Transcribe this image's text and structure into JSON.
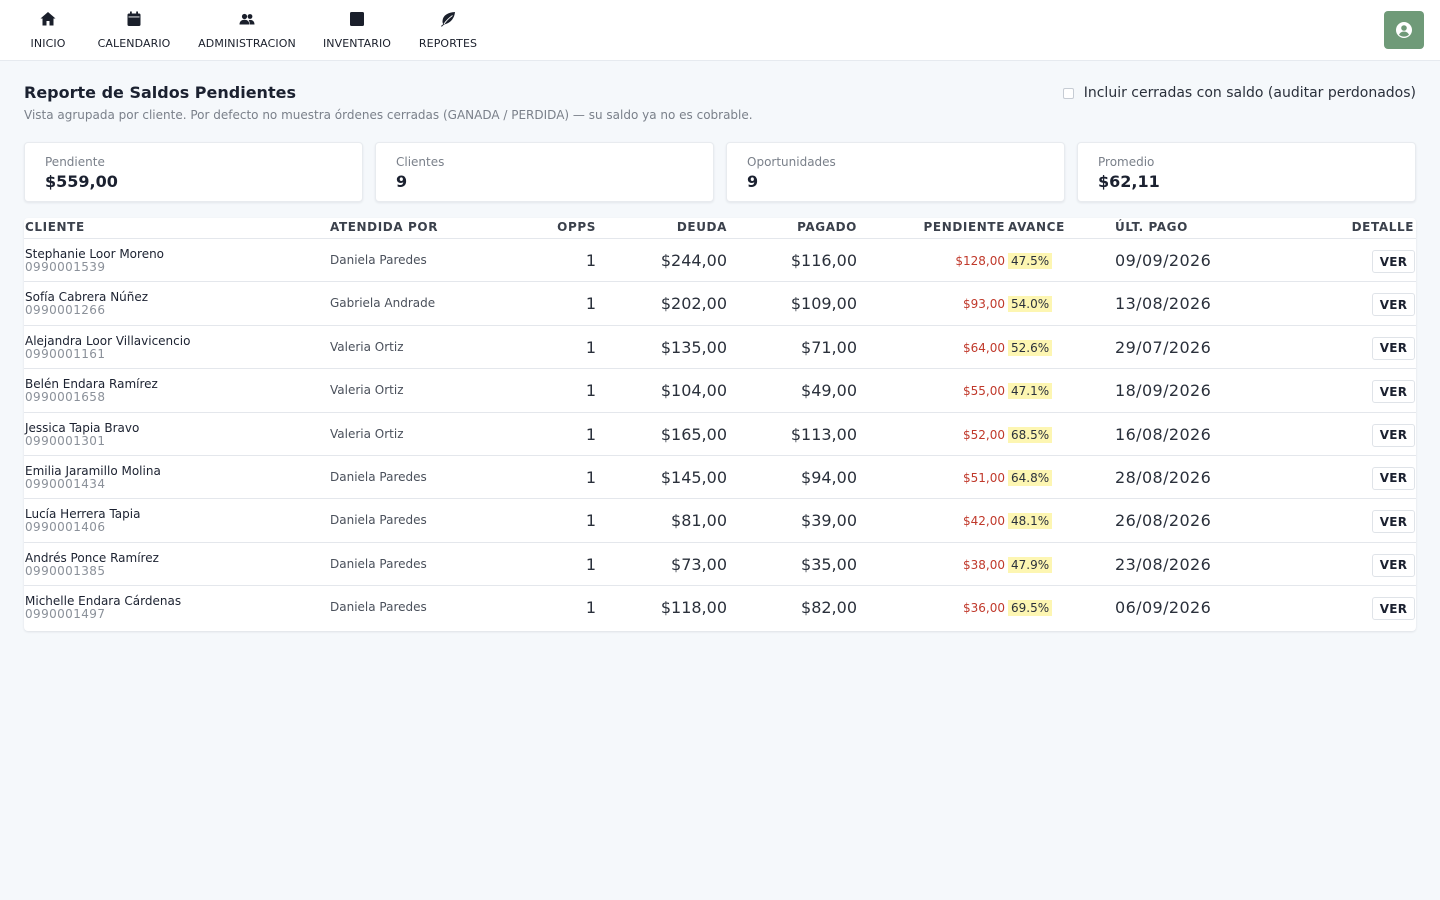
{
  "nav": {
    "items": [
      {
        "label": "INICIO",
        "icon": "home-icon"
      },
      {
        "label": "CALENDARIO",
        "icon": "calendar-icon"
      },
      {
        "label": "ADMINISTRACION",
        "icon": "users-icon"
      },
      {
        "label": "INVENTARIO",
        "icon": "box-icon"
      },
      {
        "label": "REPORTES",
        "icon": "leaf-icon"
      }
    ],
    "user_icon": "user-circle-icon",
    "user_button_color": "#6f9a78"
  },
  "header": {
    "title": "Reporte de Saldos Pendientes",
    "subtitle": "Vista agrupada por cliente. Por defecto no muestra órdenes cerradas (GANADA / PERDIDA) — su saldo ya no es cobrable.",
    "include_closed_label": "Incluir cerradas con saldo (auditar perdonados)",
    "include_closed_checked": false
  },
  "stats": [
    {
      "label": "Pendiente",
      "value": "$559,00"
    },
    {
      "label": "Clientes",
      "value": "9"
    },
    {
      "label": "Oportunidades",
      "value": "9"
    },
    {
      "label": "Promedio",
      "value": "$62,11"
    }
  ],
  "table": {
    "columns": [
      "CLIENTE",
      "ATENDIDA POR",
      "OPPS",
      "DEUDA",
      "PAGADO",
      "PENDIENTE",
      "AVANCE",
      "ÚLT. PAGO",
      "DETALLE"
    ],
    "action_label": "VER",
    "pending_color": "#c0392b",
    "progress_highlight": "#fdf6b2",
    "rows": [
      {
        "client": "Stephanie Loor Moreno",
        "id": "0990001539",
        "agent": "Daniela Paredes",
        "opps": "1",
        "debt": "$244,00",
        "paid": "$116,00",
        "pending": "$128,00",
        "progress": "47.5%",
        "last_payment": "09/09/2026"
      },
      {
        "client": "Sofía Cabrera Núñez",
        "id": "0990001266",
        "agent": "Gabriela Andrade",
        "opps": "1",
        "debt": "$202,00",
        "paid": "$109,00",
        "pending": "$93,00",
        "progress": "54.0%",
        "last_payment": "13/08/2026"
      },
      {
        "client": "Alejandra Loor Villavicencio",
        "id": "0990001161",
        "agent": "Valeria Ortiz",
        "opps": "1",
        "debt": "$135,00",
        "paid": "$71,00",
        "pending": "$64,00",
        "progress": "52.6%",
        "last_payment": "29/07/2026"
      },
      {
        "client": "Belén Endara Ramírez",
        "id": "0990001658",
        "agent": "Valeria Ortiz",
        "opps": "1",
        "debt": "$104,00",
        "paid": "$49,00",
        "pending": "$55,00",
        "progress": "47.1%",
        "last_payment": "18/09/2026"
      },
      {
        "client": "Jessica Tapia Bravo",
        "id": "0990001301",
        "agent": "Valeria Ortiz",
        "opps": "1",
        "debt": "$165,00",
        "paid": "$113,00",
        "pending": "$52,00",
        "progress": "68.5%",
        "last_payment": "16/08/2026"
      },
      {
        "client": "Emilia Jaramillo Molina",
        "id": "0990001434",
        "agent": "Daniela Paredes",
        "opps": "1",
        "debt": "$145,00",
        "paid": "$94,00",
        "pending": "$51,00",
        "progress": "64.8%",
        "last_payment": "28/08/2026"
      },
      {
        "client": "Lucía Herrera Tapia",
        "id": "0990001406",
        "agent": "Daniela Paredes",
        "opps": "1",
        "debt": "$81,00",
        "paid": "$39,00",
        "pending": "$42,00",
        "progress": "48.1%",
        "last_payment": "26/08/2026"
      },
      {
        "client": "Andrés Ponce Ramírez",
        "id": "0990001385",
        "agent": "Daniela Paredes",
        "opps": "1",
        "debt": "$73,00",
        "paid": "$35,00",
        "pending": "$38,00",
        "progress": "47.9%",
        "last_payment": "23/08/2026"
      },
      {
        "client": "Michelle Endara Cárdenas",
        "id": "0990001497",
        "agent": "Daniela Paredes",
        "opps": "1",
        "debt": "$118,00",
        "paid": "$82,00",
        "pending": "$36,00",
        "progress": "69.5%",
        "last_payment": "06/09/2026"
      }
    ]
  }
}
